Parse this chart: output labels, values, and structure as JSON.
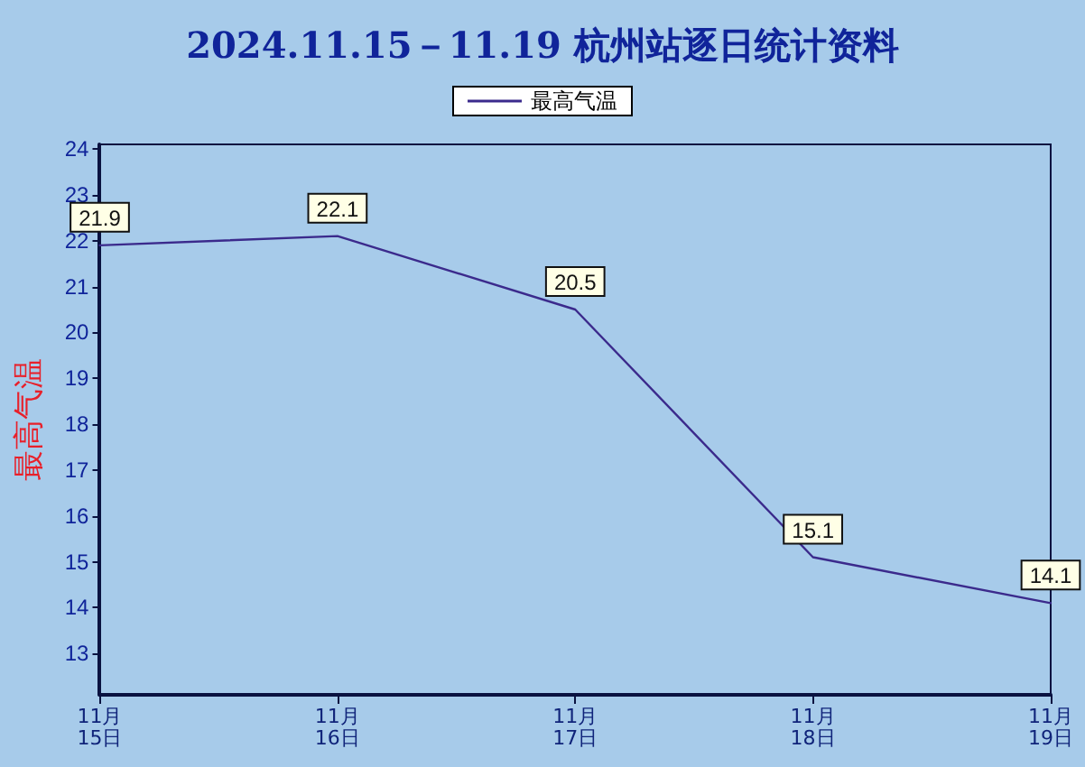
{
  "chart_data": {
    "type": "line",
    "title": "2024.11.15－11.19 杭州站逐日统计资料",
    "ylabel": "最高气温",
    "categories": [
      "11月\n15日",
      "11月\n16日",
      "11月\n17日",
      "11月\n18日",
      "11月\n19日"
    ],
    "series": [
      {
        "name": "最高气温",
        "color": "#3b2a8c",
        "values": [
          21.9,
          22.1,
          20.5,
          15.1,
          14.1
        ]
      }
    ],
    "ylim": [
      12.1,
      24.1
    ],
    "yticks": [
      13,
      14,
      15,
      16,
      17,
      18,
      19,
      20,
      21,
      22,
      23,
      24
    ],
    "data_labels": true,
    "grid": false,
    "legend": "top",
    "marker": "none",
    "line_style": "solid"
  }
}
